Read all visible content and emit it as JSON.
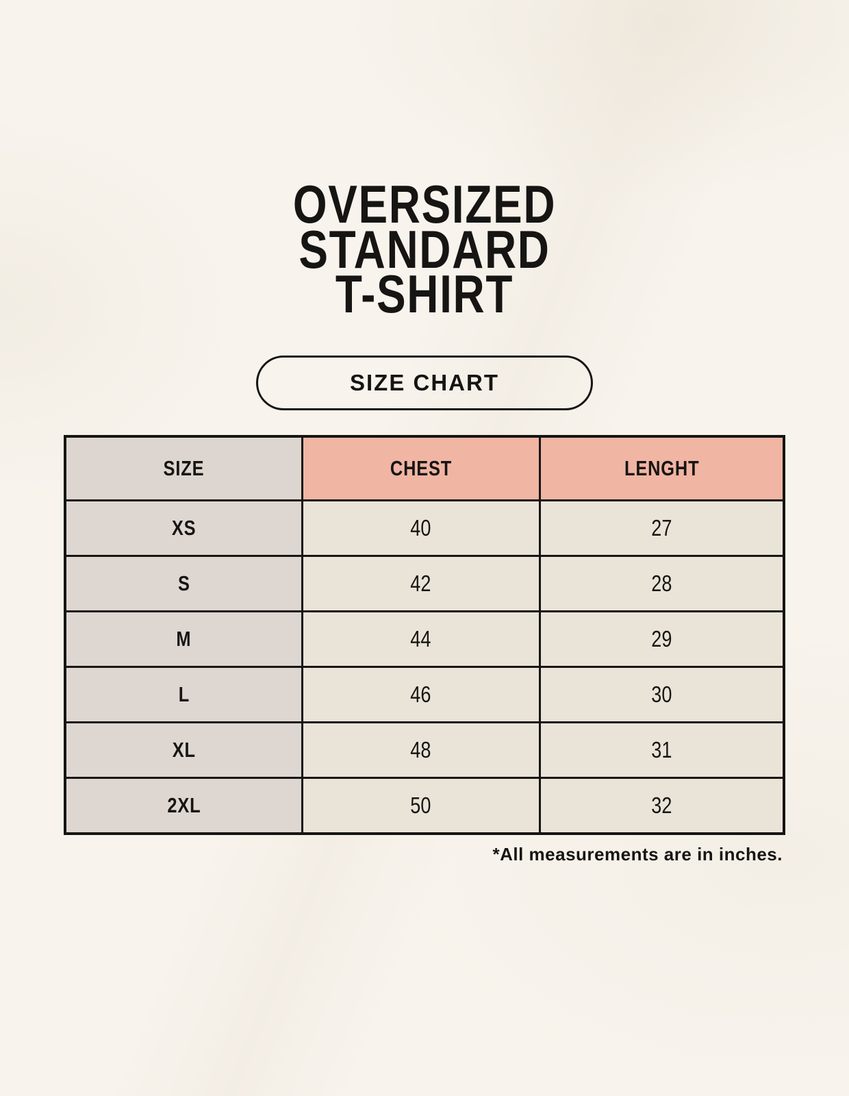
{
  "colors": {
    "background": "#f8f4ed",
    "ink": "#161513",
    "header_size_bg": "#ddd5cf",
    "header_measure_bg": "#f0b5a3",
    "row_size_bg": "#ded6d1",
    "row_data_bg": "#eae3d8",
    "border": "#161513"
  },
  "header": {
    "title_lines": [
      "OVERSIZED",
      "STANDARD",
      "T-SHIRT"
    ],
    "badge_label": "SIZE CHART"
  },
  "size_table": {
    "columns": [
      "SIZE",
      "CHEST",
      "LENGHT"
    ],
    "rows": [
      [
        "XS",
        "40",
        "27"
      ],
      [
        "S",
        "42",
        "28"
      ],
      [
        "M",
        "44",
        "29"
      ],
      [
        "L",
        "46",
        "30"
      ],
      [
        "XL",
        "48",
        "31"
      ],
      [
        "2XL",
        "50",
        "32"
      ]
    ],
    "footnote": "*All measurements are in inches."
  }
}
